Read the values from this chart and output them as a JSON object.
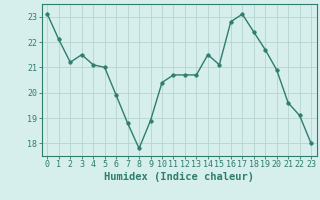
{
  "x": [
    0,
    1,
    2,
    3,
    4,
    5,
    6,
    7,
    8,
    9,
    10,
    11,
    12,
    13,
    14,
    15,
    16,
    17,
    18,
    19,
    20,
    21,
    22,
    23
  ],
  "y": [
    23.1,
    22.1,
    21.2,
    21.5,
    21.1,
    21.0,
    19.9,
    18.8,
    17.8,
    18.9,
    20.4,
    20.7,
    20.7,
    20.7,
    21.5,
    21.1,
    22.8,
    23.1,
    22.4,
    21.7,
    20.9,
    19.6,
    19.1,
    18.0
  ],
  "line_color": "#2e7d6e",
  "marker": "o",
  "markersize": 2.5,
  "linewidth": 1.0,
  "bg_color": "#d6eeec",
  "grid_color": "#b8d4d0",
  "xlabel": "Humidex (Indice chaleur)",
  "ylim": [
    17.5,
    23.5
  ],
  "yticks": [
    18,
    19,
    20,
    21,
    22,
    23
  ],
  "xticks": [
    0,
    1,
    2,
    3,
    4,
    5,
    6,
    7,
    8,
    9,
    10,
    11,
    12,
    13,
    14,
    15,
    16,
    17,
    18,
    19,
    20,
    21,
    22,
    23
  ],
  "tick_color": "#2e7d6e",
  "axis_color": "#2e7d6e",
  "xlabel_fontsize": 7.5,
  "tick_fontsize": 6.0
}
